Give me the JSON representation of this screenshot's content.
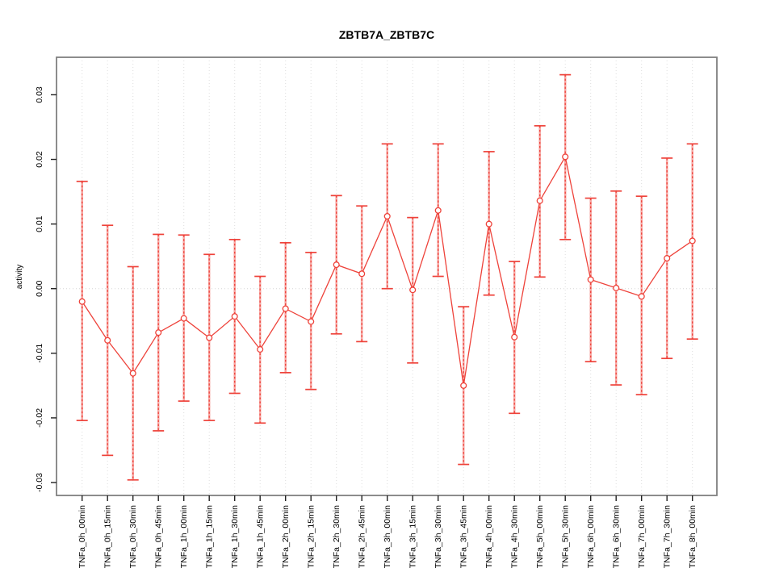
{
  "figure": {
    "background": "#ffffff"
  },
  "colors": {
    "series_red": "#ee423a",
    "errorbar_fill": "#f7aba7",
    "gridline": "#dedede",
    "zero_line": "#d6d6d6",
    "box": "#808080",
    "tick": "#222222",
    "label_text": "#000000"
  },
  "chart_data": {
    "type": "line",
    "subtype": "means-with-error-bars",
    "title": "ZBTB7A_ZBTB7C",
    "xlabel": "",
    "ylabel": "activity",
    "ylim": [
      -0.032,
      0.0358
    ],
    "grid": "dotted vertical gridline at every category; dotted horizontal line at 0",
    "legend": "none",
    "yticks": {
      "values": [
        0.03,
        0.02,
        0.01,
        0.0,
        -0.01,
        -0.02,
        -0.03
      ],
      "labels": [
        "0.03",
        "0.02",
        "0.01",
        "0.00",
        "-0.01",
        "-0.02",
        "-0.03"
      ]
    },
    "categories": [
      "TNFa_0h_00min",
      "TNFa_0h_15min",
      "TNFa_0h_30min",
      "TNFa_0h_45min",
      "TNFa_1h_00min",
      "TNFa_1h_15min",
      "TNFa_1h_30min",
      "TNFa_1h_45min",
      "TNFa_2h_00min",
      "TNFa_2h_15min",
      "TNFa_2h_30min",
      "TNFa_2h_45min",
      "TNFa_3h_00min",
      "TNFa_3h_15min",
      "TNFa_3h_30min",
      "TNFa_3h_45min",
      "TNFa_4h_00min",
      "TNFa_4h_30min",
      "TNFa_5h_00min",
      "TNFa_5h_30min",
      "TNFa_6h_00min",
      "TNFa_6h_30min",
      "TNFa_7h_00min",
      "TNFa_7h_30min",
      "TNFa_8h_00min"
    ],
    "series": [
      {
        "name": "activity",
        "means": [
          -0.002,
          -0.008,
          -0.0131,
          -0.0068,
          -0.0046,
          -0.0076,
          -0.0043,
          -0.0094,
          -0.0031,
          -0.0051,
          0.0037,
          0.0023,
          0.0112,
          -0.0002,
          0.0121,
          -0.015,
          0.01,
          -0.0075,
          0.0136,
          0.0204,
          0.0014,
          0.0001,
          -0.0012,
          0.0047,
          0.0074
        ],
        "ci_lower": [
          -0.0204,
          -0.0258,
          -0.0296,
          -0.022,
          -0.0174,
          -0.0204,
          -0.0162,
          -0.0208,
          -0.013,
          -0.0156,
          -0.007,
          -0.0082,
          0.0,
          -0.0115,
          0.0019,
          -0.0272,
          -0.001,
          -0.0193,
          0.0018,
          0.0076,
          -0.0113,
          -0.0149,
          -0.0164,
          -0.0108,
          -0.0078
        ],
        "ci_upper": [
          0.0166,
          0.0098,
          0.0034,
          0.0084,
          0.0083,
          0.0053,
          0.0076,
          0.0019,
          0.0071,
          0.0056,
          0.0144,
          0.0128,
          0.0224,
          0.011,
          0.0224,
          -0.0028,
          0.0212,
          0.0042,
          0.0252,
          0.0331,
          0.014,
          0.0151,
          0.0143,
          0.0202,
          0.0224
        ]
      }
    ]
  }
}
